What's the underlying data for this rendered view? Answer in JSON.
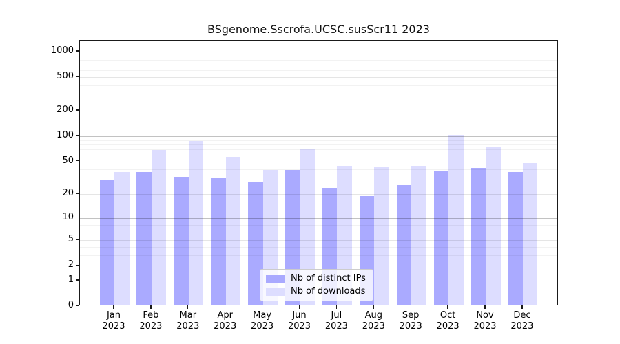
{
  "chart_data": {
    "type": "bar",
    "title": "BSgenome.Sscrofa.UCSC.susScr11 2023",
    "categories": [
      "Jan",
      "Feb",
      "Mar",
      "Apr",
      "May",
      "Jun",
      "Jul",
      "Aug",
      "Sep",
      "Oct",
      "Nov",
      "Dec"
    ],
    "year_label": "2023",
    "series": [
      {
        "name": "Nb of distinct IPs",
        "color": "#aaaaff",
        "values": [
          29,
          36,
          31,
          30,
          27,
          38,
          23,
          18,
          25,
          37,
          40,
          36
        ]
      },
      {
        "name": "Nb of downloads",
        "color": "#ddddff",
        "values": [
          36,
          66,
          85,
          54,
          38,
          68,
          42,
          41,
          42,
          100,
          71,
          46
        ]
      }
    ],
    "y_ticks": [
      0,
      1,
      2,
      5,
      10,
      20,
      50,
      100,
      200,
      500,
      1000
    ],
    "y_scale": "log10(1+x)",
    "ylim": [
      0,
      1337
    ],
    "grid": "horizontal",
    "legend_position": "lower center",
    "legend": [
      "Nb of distinct IPs",
      "Nb of downloads"
    ]
  }
}
